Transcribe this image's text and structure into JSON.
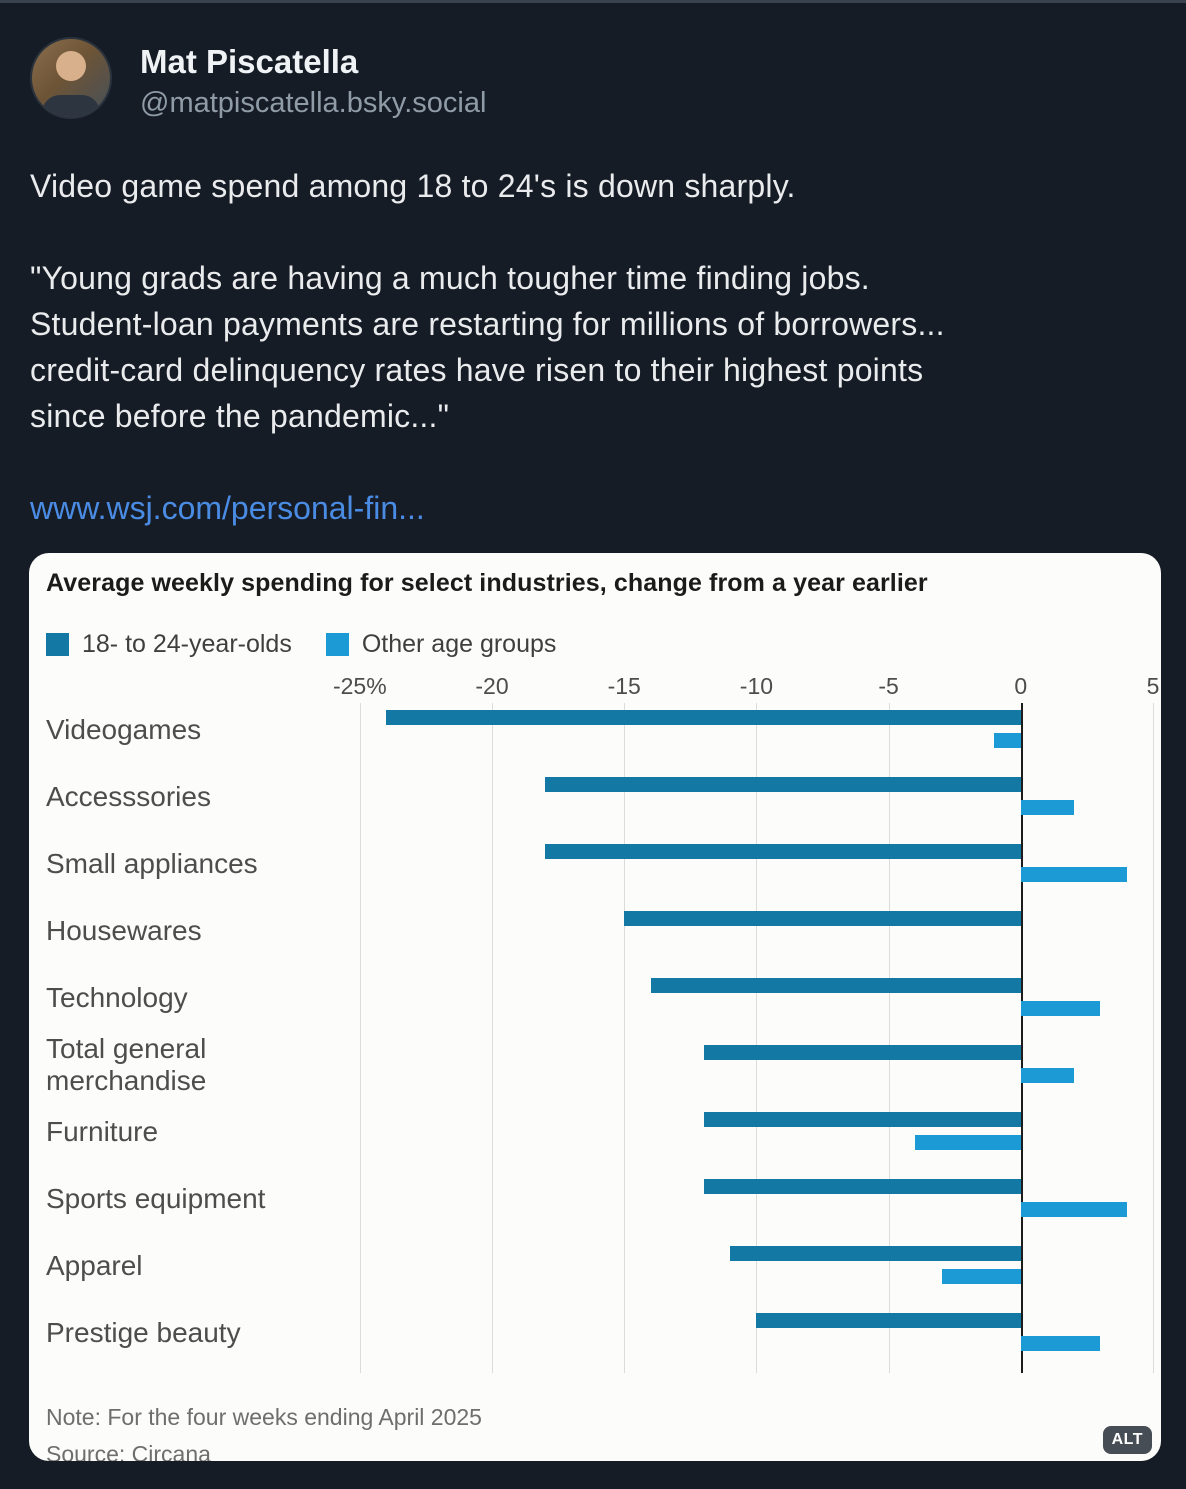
{
  "header": {
    "display_name": "Mat Piscatella",
    "handle": "@matpiscatella.bsky.social"
  },
  "post": {
    "paragraph1": "Video game spend among 18 to 24's is down sharply.",
    "paragraph2": "\"Young grads are having a much tougher time finding jobs.\nStudent-loan payments are restarting for millions of borrowers...\ncredit-card delinquency rates have risen to their highest points\nsince before the pandemic...\"",
    "link_text": "www.wsj.com/personal-fin..."
  },
  "colors": {
    "page_background": "#161c26",
    "card_background": "#fcfcfa",
    "link": "#4a8ce4",
    "series_18_24": "#1478a4",
    "series_other": "#1b9ad6",
    "zero_line": "#1c1c1c",
    "gridline": "#dcdcd8"
  },
  "chart_card": {
    "note": "Note: For the four weeks ending April 2025",
    "source": "Source: Circana",
    "alt_badge": "ALT"
  },
  "chart_data": {
    "type": "bar",
    "orientation": "horizontal",
    "title": "Average weekly spending for select industries, change from a year earlier",
    "unit": "percent change from a year earlier",
    "categories": [
      "Videogames",
      "Accesssories",
      "Small appliances",
      "Housewares",
      "Technology",
      "Total general merchandise",
      "Furniture",
      "Sports equipment",
      "Apparel",
      "Prestige beauty"
    ],
    "series": [
      {
        "name": "18- to 24-year-olds",
        "color": "#1478a4",
        "values": [
          -24,
          -18,
          -18,
          -15,
          -14,
          -12,
          -12,
          -12,
          -11,
          -10
        ]
      },
      {
        "name": "Other age groups",
        "color": "#1b9ad6",
        "values": [
          -1,
          2,
          4,
          0,
          3,
          2,
          -4,
          4,
          -3,
          3
        ]
      }
    ],
    "x_ticks": [
      -25,
      -20,
      -15,
      -10,
      -5,
      0,
      5
    ],
    "x_tick_labels": [
      "-25%",
      "-20",
      "-15",
      "-10",
      "-5",
      "0",
      "5"
    ],
    "x_domain": [
      -25.9,
      5.15
    ],
    "grid": "vertical",
    "legend_position": "top-left"
  }
}
